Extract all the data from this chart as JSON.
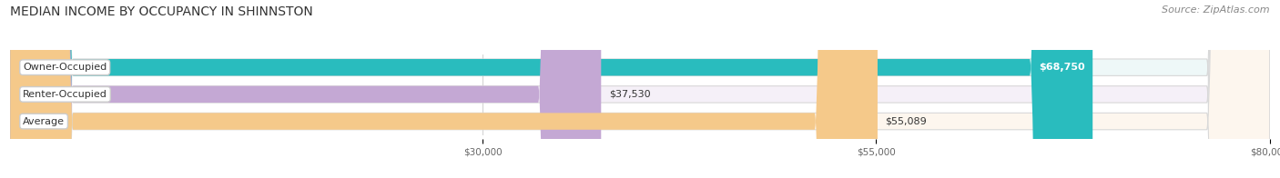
{
  "title": "MEDIAN INCOME BY OCCUPANCY IN SHINNSTON",
  "source": "Source: ZipAtlas.com",
  "categories": [
    "Owner-Occupied",
    "Renter-Occupied",
    "Average"
  ],
  "values": [
    68750,
    37530,
    55089
  ],
  "bar_colors": [
    "#29bcbe",
    "#c4a8d4",
    "#f5c98a"
  ],
  "bar_bg_colors": [
    "#eef8f8",
    "#f5f0f8",
    "#fdf6ee"
  ],
  "value_labels": [
    "$68,750",
    "$37,530",
    "$55,089"
  ],
  "xlim": [
    0,
    80000
  ],
  "xticks": [
    30000,
    55000,
    80000
  ],
  "xtick_labels": [
    "$30,000",
    "$55,000",
    "$80,000"
  ],
  "title_fontsize": 10,
  "source_fontsize": 8,
  "label_fontsize": 8,
  "value_fontsize": 8,
  "bar_height": 0.62,
  "background_color": "#ffffff"
}
